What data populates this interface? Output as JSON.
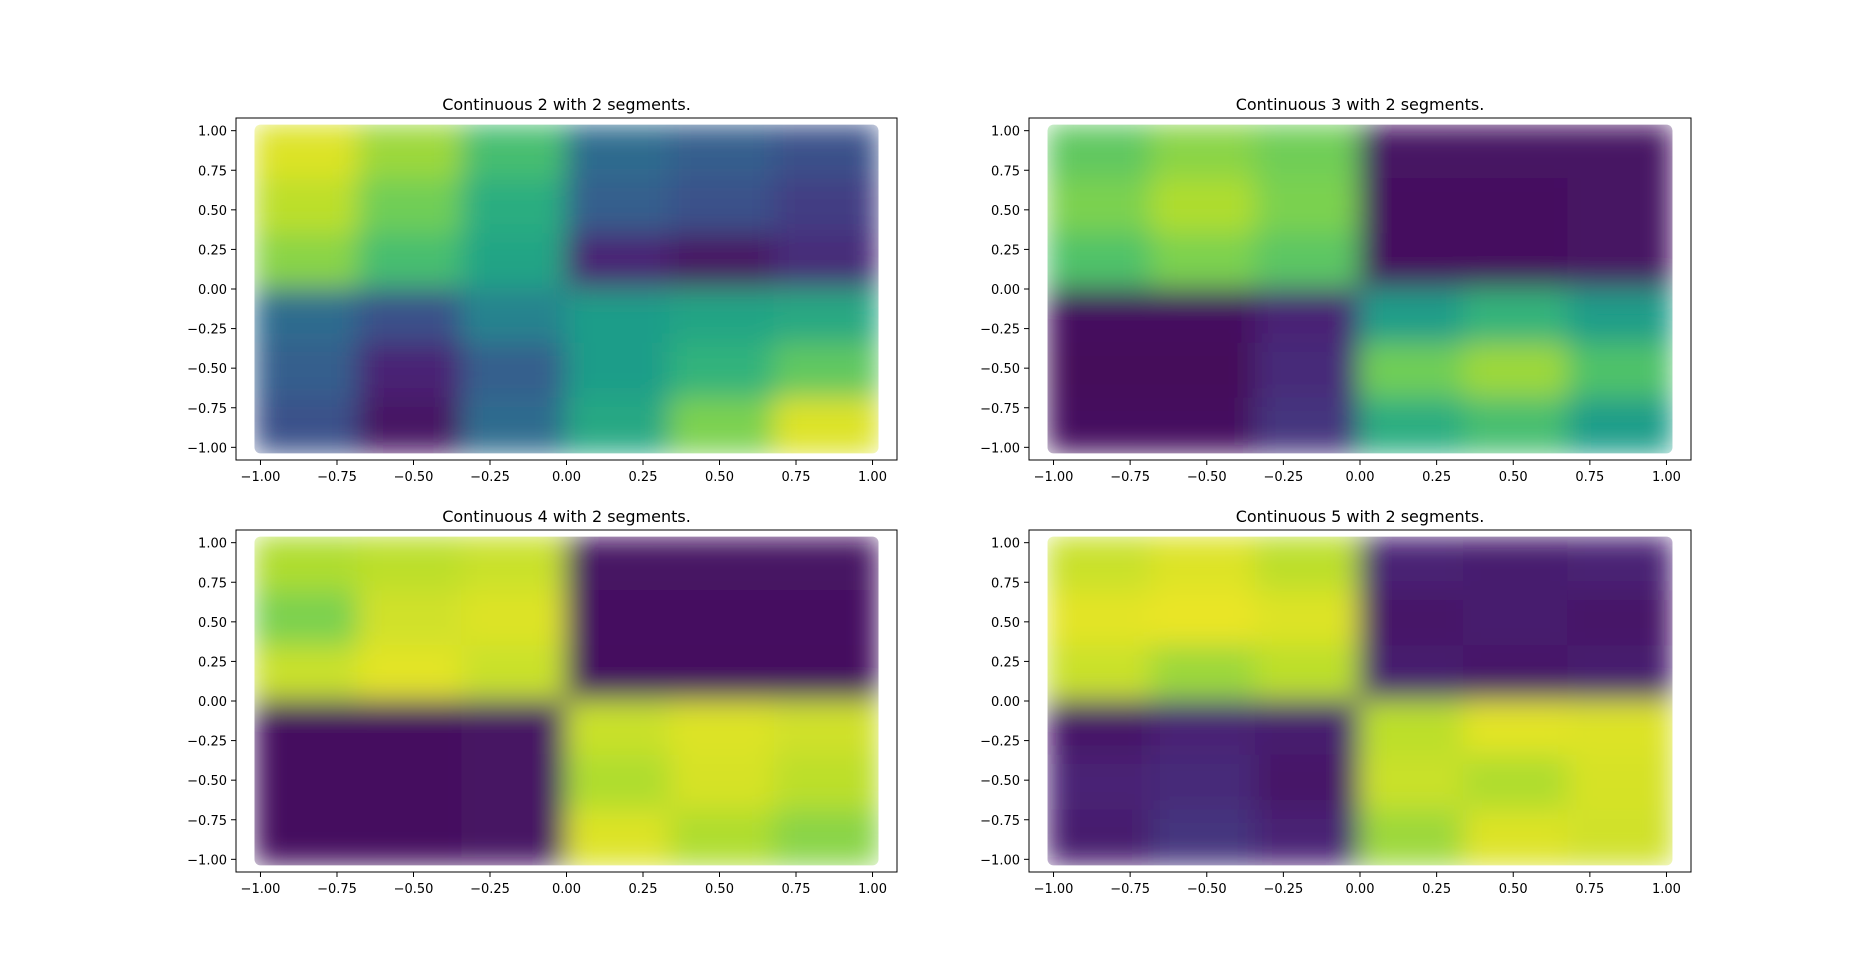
{
  "figure": {
    "background": "#ffffff",
    "colormap": "viridis",
    "colormap_stops": [
      "#440154",
      "#482878",
      "#3e4989",
      "#31688e",
      "#26828e",
      "#1f9e89",
      "#35b779",
      "#6ece58",
      "#b5de2b",
      "#fde725"
    ]
  },
  "chart_data": [
    {
      "type": "scatter",
      "title": "Continuous 2 with 2 segments.",
      "xlabel": "",
      "ylabel": "",
      "xlim": [
        -1.08,
        1.08
      ],
      "ylim": [
        -1.08,
        1.08
      ],
      "xticks": [
        -1.0,
        -0.75,
        -0.5,
        -0.25,
        0.0,
        0.25,
        0.5,
        0.75,
        1.0
      ],
      "xtick_labels": [
        "−1.00",
        "−0.75",
        "−0.50",
        "−0.25",
        "0.00",
        "0.25",
        "0.50",
        "0.75",
        "1.00"
      ],
      "yticks": [
        1.0,
        0.75,
        0.5,
        0.25,
        0.0,
        -0.25,
        -0.5,
        -0.75,
        -1.0
      ],
      "ytick_labels": [
        "1.00",
        "0.75",
        "0.50",
        "0.25",
        "0.00",
        "−0.25",
        "−0.50",
        "−0.75",
        "−1.00"
      ],
      "x_domain": [
        -1.0,
        1.0
      ],
      "y_domain": [
        -1.0,
        1.0
      ],
      "grid": false,
      "color_field": {
        "grid_rows": 6,
        "grid_cols": 6,
        "values": [
          [
            0.95,
            0.85,
            0.7,
            0.35,
            0.3,
            0.25
          ],
          [
            0.9,
            0.78,
            0.62,
            0.3,
            0.25,
            0.18
          ],
          [
            0.82,
            0.7,
            0.58,
            0.1,
            0.05,
            0.12
          ],
          [
            0.35,
            0.25,
            0.45,
            0.55,
            0.58,
            0.6
          ],
          [
            0.3,
            0.1,
            0.3,
            0.55,
            0.65,
            0.75
          ],
          [
            0.25,
            0.05,
            0.35,
            0.6,
            0.8,
            0.95
          ]
        ]
      }
    },
    {
      "type": "scatter",
      "title": "Continuous 3 with 2 segments.",
      "xlabel": "",
      "ylabel": "",
      "xlim": [
        -1.08,
        1.08
      ],
      "ylim": [
        -1.08,
        1.08
      ],
      "xticks": [
        -1.0,
        -0.75,
        -0.5,
        -0.25,
        0.0,
        0.25,
        0.5,
        0.75,
        1.0
      ],
      "xtick_labels": [
        "−1.00",
        "−0.75",
        "−0.50",
        "−0.25",
        "0.00",
        "0.25",
        "0.50",
        "0.75",
        "1.00"
      ],
      "yticks": [
        1.0,
        0.75,
        0.5,
        0.25,
        0.0,
        -0.25,
        -0.5,
        -0.75,
        -1.0
      ],
      "ytick_labels": [
        "1.00",
        "0.75",
        "0.50",
        "0.25",
        "0.00",
        "−0.25",
        "−0.50",
        "−0.75",
        "−1.00"
      ],
      "x_domain": [
        -1.0,
        1.0
      ],
      "y_domain": [
        -1.0,
        1.0
      ],
      "grid": false,
      "color_field": {
        "grid_rows": 6,
        "grid_cols": 6,
        "values": [
          [
            0.75,
            0.82,
            0.78,
            0.05,
            0.05,
            0.05
          ],
          [
            0.8,
            0.88,
            0.8,
            0.03,
            0.03,
            0.05
          ],
          [
            0.72,
            0.8,
            0.74,
            0.03,
            0.03,
            0.05
          ],
          [
            0.03,
            0.03,
            0.1,
            0.55,
            0.65,
            0.55
          ],
          [
            0.02,
            0.02,
            0.12,
            0.78,
            0.85,
            0.72
          ],
          [
            0.03,
            0.03,
            0.15,
            0.62,
            0.7,
            0.55
          ]
        ]
      }
    },
    {
      "type": "scatter",
      "title": "Continuous 4 with 2 segments.",
      "xlabel": "",
      "ylabel": "",
      "xlim": [
        -1.08,
        1.08
      ],
      "ylim": [
        -1.08,
        1.08
      ],
      "xticks": [
        -1.0,
        -0.75,
        -0.5,
        -0.25,
        0.0,
        0.25,
        0.5,
        0.75,
        1.0
      ],
      "xtick_labels": [
        "−1.00",
        "−0.75",
        "−0.50",
        "−0.25",
        "0.00",
        "0.25",
        "0.50",
        "0.75",
        "1.00"
      ],
      "yticks": [
        1.0,
        0.75,
        0.5,
        0.25,
        0.0,
        -0.25,
        -0.5,
        -0.75,
        -1.0
      ],
      "ytick_labels": [
        "1.00",
        "0.75",
        "0.50",
        "0.25",
        "0.00",
        "−0.25",
        "−0.50",
        "−0.75",
        "−1.00"
      ],
      "x_domain": [
        -1.0,
        1.0
      ],
      "y_domain": [
        -1.0,
        1.0
      ],
      "grid": false,
      "color_field": {
        "grid_rows": 6,
        "grid_cols": 6,
        "values": [
          [
            0.88,
            0.9,
            0.92,
            0.05,
            0.05,
            0.05
          ],
          [
            0.8,
            0.93,
            0.95,
            0.04,
            0.04,
            0.04
          ],
          [
            0.92,
            0.96,
            0.92,
            0.03,
            0.03,
            0.03
          ],
          [
            0.03,
            0.03,
            0.05,
            0.92,
            0.95,
            0.93
          ],
          [
            0.03,
            0.03,
            0.05,
            0.88,
            0.94,
            0.9
          ],
          [
            0.03,
            0.03,
            0.05,
            0.95,
            0.88,
            0.82
          ]
        ]
      }
    },
    {
      "type": "scatter",
      "title": "Continuous 5 with 2 segments.",
      "xlabel": "",
      "ylabel": "",
      "xlim": [
        -1.08,
        1.08
      ],
      "ylim": [
        -1.08,
        1.08
      ],
      "xticks": [
        -1.0,
        -0.75,
        -0.5,
        -0.25,
        0.0,
        0.25,
        0.5,
        0.75,
        1.0
      ],
      "xtick_labels": [
        "−1.00",
        "−0.75",
        "−0.50",
        "−0.25",
        "0.00",
        "0.25",
        "0.50",
        "0.75",
        "1.00"
      ],
      "yticks": [
        1.0,
        0.75,
        0.5,
        0.25,
        0.0,
        -0.25,
        -0.5,
        -0.75,
        -1.0
      ],
      "ytick_labels": [
        "1.00",
        "0.75",
        "0.50",
        "0.25",
        "0.00",
        "−0.25",
        "−0.50",
        "−0.75",
        "−1.00"
      ],
      "x_domain": [
        -1.0,
        1.0
      ],
      "y_domain": [
        -1.0,
        1.0
      ],
      "grid": false,
      "color_field": {
        "grid_rows": 6,
        "grid_cols": 6,
        "values": [
          [
            0.92,
            0.95,
            0.9,
            0.1,
            0.08,
            0.1
          ],
          [
            0.96,
            0.97,
            0.95,
            0.06,
            0.08,
            0.06
          ],
          [
            0.92,
            0.85,
            0.9,
            0.08,
            0.06,
            0.08
          ],
          [
            0.06,
            0.1,
            0.08,
            0.9,
            0.96,
            0.95
          ],
          [
            0.1,
            0.12,
            0.06,
            0.92,
            0.88,
            0.94
          ],
          [
            0.08,
            0.15,
            0.1,
            0.85,
            0.95,
            0.93
          ]
        ]
      }
    }
  ]
}
